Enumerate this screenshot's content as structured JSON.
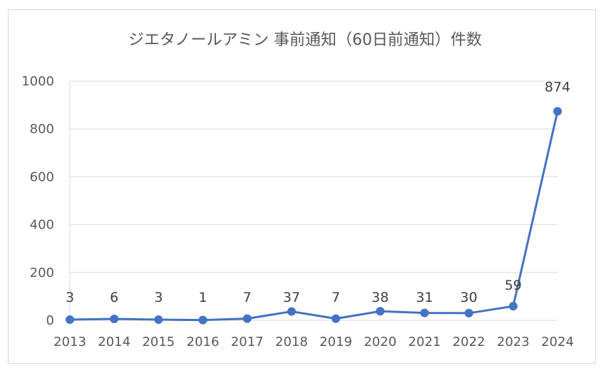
{
  "chart_data": {
    "type": "line",
    "title": "ジエタノールアミン 事前通知（60日前通知）件数",
    "xlabel": "",
    "ylabel": "",
    "categories": [
      "2013",
      "2014",
      "2015",
      "2016",
      "2017",
      "2018",
      "2019",
      "2020",
      "2021",
      "2022",
      "2023",
      "2024"
    ],
    "series": [
      {
        "values": [
          3,
          6,
          3,
          1,
          7,
          37,
          7,
          38,
          31,
          30,
          59,
          874
        ]
      }
    ],
    "ylim": [
      0,
      1000
    ],
    "yticks": [
      "0",
      "200",
      "400",
      "600",
      "800",
      "1000"
    ],
    "data_labels": [
      "3",
      "6",
      "3",
      "1",
      "7",
      "37",
      "7",
      "38",
      "31",
      "30",
      "59",
      "874"
    ],
    "grid": true,
    "legend": "none",
    "colors": {
      "series": "#4472C4",
      "grid": "#d9d9d9",
      "axis": "#d9d9d9",
      "text": "#595959"
    }
  }
}
